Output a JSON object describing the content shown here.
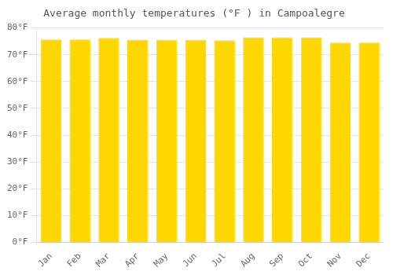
{
  "chart_data": {
    "type": "bar",
    "title": "Average monthly temperatures (°F ) in Campoalegre",
    "categories": [
      "Jan",
      "Feb",
      "Mar",
      "Apr",
      "May",
      "Jun",
      "Jul",
      "Aug",
      "Sep",
      "Oct",
      "Nov",
      "Dec"
    ],
    "values": [
      75.7,
      75.7,
      76.3,
      75.6,
      75.6,
      75.6,
      75.4,
      76.5,
      76.5,
      76.5,
      74.5,
      74.5
    ],
    "color": "#FFD700",
    "ylim": [
      0,
      80
    ],
    "yticks": [
      {
        "value": 0,
        "label": "0°F"
      },
      {
        "value": 10,
        "label": "10°F"
      },
      {
        "value": 20,
        "label": "20°F"
      },
      {
        "value": 30,
        "label": "30°F"
      },
      {
        "value": 40,
        "label": "40°F"
      },
      {
        "value": 50,
        "label": "50°F"
      },
      {
        "value": 60,
        "label": "60°F"
      },
      {
        "value": 70,
        "label": "70°F"
      },
      {
        "value": 80,
        "label": "80°F"
      }
    ],
    "grid": true
  }
}
